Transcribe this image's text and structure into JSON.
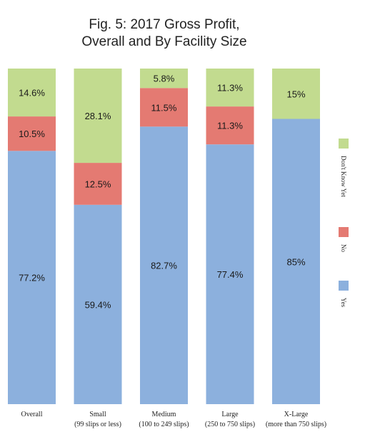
{
  "title_lines": [
    "Fig. 5: 2017 Gross Profit,",
    "Overall and By Facility Size"
  ],
  "chart_data": {
    "type": "bar",
    "stacked": true,
    "orientation": "vertical",
    "title": "Fig. 5: 2017 Gross Profit, Overall and By Facility Size",
    "categories": [
      {
        "name": "Overall",
        "sub": ""
      },
      {
        "name": "Small",
        "sub": "(99 slips or less)"
      },
      {
        "name": "Medium",
        "sub": "(100 to 249 slips)"
      },
      {
        "name": "Large",
        "sub": "(250 to 750 slips)"
      },
      {
        "name": "X-Large",
        "sub": "(more than 750 slips)"
      }
    ],
    "series": [
      {
        "name": "Yes",
        "color": "#8cb0dd",
        "values": [
          77.2,
          59.4,
          82.7,
          77.4,
          85
        ],
        "labels": [
          "77.2%",
          "59.4%",
          "82.7%",
          "77.4%",
          "85%"
        ]
      },
      {
        "name": "No",
        "color": "#e47a72",
        "values": [
          10.5,
          12.5,
          11.5,
          11.3,
          null
        ],
        "labels": [
          "10.5%",
          "12.5%",
          "11.5%",
          "11.3%",
          ""
        ]
      },
      {
        "name": "Don't Know Yet",
        "color": "#c2db8f",
        "values": [
          14.6,
          28.1,
          5.8,
          11.3,
          15
        ],
        "labels": [
          "14.6%",
          "28.1%",
          "5.8%",
          "11.3%",
          "15%"
        ]
      }
    ],
    "ylim": [
      0,
      100
    ],
    "grid": false,
    "legend": {
      "placement": "right",
      "orientation": "vertical-text",
      "order": [
        "Don't Know Yet",
        "No",
        "Yes"
      ]
    }
  }
}
